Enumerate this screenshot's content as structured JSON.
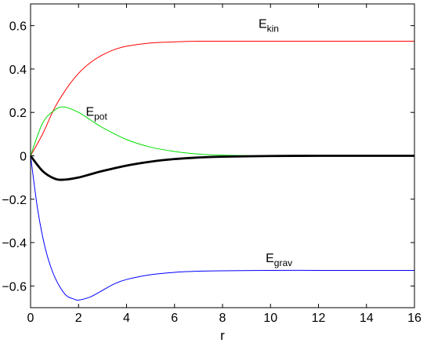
{
  "chart_data": {
    "type": "line",
    "title": "",
    "xlabel": "r",
    "ylabel": "",
    "xlim": [
      0,
      16
    ],
    "ylim": [
      -0.7,
      0.7
    ],
    "grid": false,
    "xticks": [
      0,
      2,
      4,
      6,
      8,
      10,
      12,
      14,
      16
    ],
    "yticks": [
      0.6,
      0.4,
      0.2,
      0,
      -0.2,
      -0.4,
      -0.6
    ],
    "xtick_labels": [
      "0",
      "2",
      "4",
      "6",
      "8",
      "10",
      "12",
      "14",
      "16"
    ],
    "ytick_labels": [
      "0.6",
      "0.4",
      "0.2",
      "0",
      "−0.2",
      "−0.4",
      "−0.6"
    ],
    "series": [
      {
        "color": "#ff0000",
        "stroke": 1,
        "x": [
          0,
          0.5,
          1,
          1.5,
          2,
          2.5,
          3,
          3.5,
          4,
          5,
          6,
          7,
          8,
          10,
          12,
          14,
          16
        ],
        "y": [
          0,
          0.1,
          0.22,
          0.31,
          0.38,
          0.43,
          0.465,
          0.49,
          0.505,
          0.52,
          0.525,
          0.528,
          0.528,
          0.528,
          0.528,
          0.528,
          0.528
        ]
      },
      {
        "color": "#00dd00",
        "stroke": 1,
        "x": [
          0,
          0.5,
          1,
          1.4,
          2,
          2.5,
          3,
          4,
          5,
          6,
          7,
          8,
          9,
          10,
          12,
          14,
          16
        ],
        "y": [
          0,
          0.15,
          0.21,
          0.225,
          0.2,
          0.165,
          0.13,
          0.075,
          0.04,
          0.02,
          0.008,
          0.003,
          0.001,
          0,
          0,
          0,
          0
        ]
      },
      {
        "color": "#0000ff",
        "stroke": 1,
        "x": [
          0,
          0.3,
          0.6,
          0.9,
          1.2,
          1.5,
          1.8,
          2,
          2.5,
          3,
          3.5,
          4,
          5,
          6,
          7,
          8,
          10,
          12,
          14,
          16
        ],
        "y": [
          0,
          -0.25,
          -0.42,
          -0.53,
          -0.6,
          -0.645,
          -0.66,
          -0.665,
          -0.65,
          -0.62,
          -0.59,
          -0.57,
          -0.548,
          -0.537,
          -0.532,
          -0.53,
          -0.528,
          -0.528,
          -0.528,
          -0.528
        ]
      },
      {
        "color": "#000000",
        "stroke": 2.8,
        "x": [
          0,
          0.5,
          1,
          1.4,
          2,
          2.5,
          3,
          4,
          5,
          6,
          7,
          8,
          10,
          12,
          14,
          16
        ],
        "y": [
          0,
          -0.07,
          -0.105,
          -0.11,
          -0.1,
          -0.085,
          -0.07,
          -0.045,
          -0.027,
          -0.015,
          -0.008,
          -0.004,
          -0.001,
          0,
          0,
          0
        ]
      }
    ],
    "annotations": [
      {
        "base": "E",
        "sub": "kin",
        "x": 9.5,
        "y": 0.59
      },
      {
        "base": "E",
        "sub": "pot",
        "x": 2.3,
        "y": 0.185
      },
      {
        "base": "E",
        "sub": "grav",
        "x": 9.8,
        "y": -0.49
      }
    ]
  }
}
